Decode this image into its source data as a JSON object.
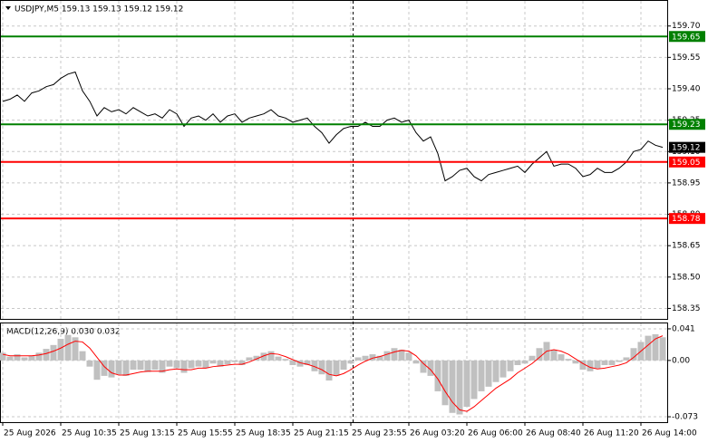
{
  "chart_data": [
    {
      "type": "line",
      "title": "USDJPY,M5  159.13 159.13 159.12 159.12",
      "ylim": [
        158.3,
        159.82
      ],
      "yticks": [
        {
          "value": 159.7,
          "label": "159.70"
        },
        159.55,
        {
          "value": 159.4,
          "label": "159.40"
        },
        159.25,
        {
          "value": 159.1,
          "label": "159.10"
        },
        158.95,
        {
          "value": 158.8,
          "label": "158.80"
        },
        158.65,
        {
          "value": 158.5,
          "label": "158.50"
        },
        158.35
      ],
      "grid": true,
      "series": [
        {
          "color": "#000000",
          "values": [
            159.34,
            159.35,
            159.37,
            159.34,
            159.38,
            159.39,
            159.41,
            159.42,
            159.45,
            159.47,
            159.48,
            159.39,
            159.34,
            159.27,
            159.31,
            159.29,
            159.3,
            159.28,
            159.31,
            159.29,
            159.27,
            159.28,
            159.26,
            159.3,
            159.28,
            159.22,
            159.26,
            159.27,
            159.25,
            159.28,
            159.24,
            159.27,
            159.28,
            159.24,
            159.26,
            159.27,
            159.28,
            159.3,
            159.27,
            159.26,
            159.24,
            159.25,
            159.26,
            159.22,
            159.19,
            159.14,
            159.18,
            159.21,
            159.22,
            159.22,
            159.24,
            159.22,
            159.22,
            159.25,
            159.26,
            159.24,
            159.25,
            159.19,
            159.15,
            159.17,
            159.09,
            158.96,
            158.98,
            159.01,
            159.02,
            158.98,
            158.96,
            158.99,
            159.0,
            159.01,
            159.02,
            159.03,
            159.0,
            159.04,
            159.07,
            159.1,
            159.03,
            159.04,
            159.04,
            159.02,
            158.98,
            158.99,
            159.02,
            159.0,
            159.0,
            159.02,
            159.05,
            159.1,
            159.11,
            159.15,
            159.13,
            159.12
          ]
        }
      ],
      "levels": [
        {
          "value": 159.65,
          "color": "#008000"
        },
        {
          "value": 159.23,
          "color": "#008000"
        },
        {
          "value": 159.05,
          "color": "#ff0000"
        },
        {
          "value": 158.78,
          "color": "#ff0000"
        }
      ],
      "current": 159.12
    },
    {
      "type": "macd",
      "title": "MACD(12,26,9) 0.030 0.032",
      "ylim": [
        -0.08,
        0.048
      ],
      "yticks": [
        0.041,
        {
          "value": 0,
          "label": "0.00"
        },
        -0.073
      ],
      "categories": [
        "25 Aug 2026",
        null,
        null,
        null,
        null,
        null,
        null,
        null,
        "25 Aug 10:35",
        null,
        null,
        null,
        null,
        null,
        null,
        null,
        "25 Aug 13:15",
        null,
        null,
        null,
        null,
        null,
        null,
        null,
        "25 Aug 15:55",
        null,
        null,
        null,
        null,
        null,
        null,
        null,
        "25 Aug 18:35",
        null,
        null,
        null,
        null,
        null,
        null,
        null,
        "25 Aug 21:15",
        null,
        null,
        null,
        null,
        null,
        null,
        null,
        "25 Aug 23:55",
        null,
        null,
        null,
        null,
        null,
        null,
        null,
        "26 Aug 03:20",
        null,
        null,
        null,
        null,
        null,
        null,
        null,
        "26 Aug 06:00",
        null,
        null,
        null,
        null,
        null,
        null,
        null,
        "26 Aug 08:40",
        null,
        null,
        null,
        null,
        null,
        null,
        null,
        "26 Aug 11:20",
        null,
        null,
        null,
        null,
        null,
        null,
        null,
        "26 Aug 14:00",
        null,
        null,
        null
      ],
      "series": [
        {
          "type": "bar",
          "color": "#c0c0c0",
          "values": [
            0.01,
            0.005,
            0.008,
            0.004,
            0.006,
            0.01,
            0.015,
            0.02,
            0.028,
            0.033,
            0.03,
            0.012,
            -0.008,
            -0.025,
            -0.02,
            -0.022,
            -0.018,
            -0.02,
            -0.012,
            -0.012,
            -0.015,
            -0.012,
            -0.016,
            -0.008,
            -0.01,
            -0.016,
            -0.01,
            -0.008,
            -0.01,
            -0.004,
            -0.008,
            -0.005,
            -0.002,
            -0.006,
            0.004,
            0.006,
            0.01,
            0.012,
            0.005,
            0.002,
            -0.006,
            -0.008,
            -0.006,
            -0.014,
            -0.018,
            -0.026,
            -0.02,
            -0.012,
            -0.004,
            0.004,
            0.006,
            0.008,
            0.006,
            0.012,
            0.016,
            0.014,
            0.01,
            -0.004,
            -0.016,
            -0.02,
            -0.04,
            -0.058,
            -0.068,
            -0.07,
            -0.06,
            -0.05,
            -0.04,
            -0.034,
            -0.028,
            -0.022,
            -0.014,
            -0.006,
            -0.004,
            0.006,
            0.016,
            0.024,
            0.014,
            0.008,
            0.002,
            -0.004,
            -0.012,
            -0.014,
            -0.01,
            -0.006,
            -0.006,
            -0.002,
            0.004,
            0.016,
            0.024,
            0.032,
            0.034,
            0.03
          ]
        },
        {
          "type": "line",
          "color": "#ff0000",
          "values": [
            0.008,
            0.006,
            0.006,
            0.006,
            0.006,
            0.007,
            0.009,
            0.012,
            0.016,
            0.021,
            0.025,
            0.024,
            0.016,
            0.004,
            -0.008,
            -0.016,
            -0.019,
            -0.019,
            -0.017,
            -0.015,
            -0.014,
            -0.014,
            -0.014,
            -0.012,
            -0.011,
            -0.012,
            -0.012,
            -0.01,
            -0.01,
            -0.008,
            -0.007,
            -0.006,
            -0.005,
            -0.005,
            -0.002,
            0.002,
            0.006,
            0.009,
            0.008,
            0.005,
            0.001,
            -0.003,
            -0.005,
            -0.008,
            -0.012,
            -0.018,
            -0.02,
            -0.017,
            -0.012,
            -0.006,
            -0.001,
            0.003,
            0.005,
            0.008,
            0.011,
            0.013,
            0.012,
            0.006,
            -0.004,
            -0.012,
            -0.024,
            -0.04,
            -0.054,
            -0.064,
            -0.066,
            -0.06,
            -0.052,
            -0.044,
            -0.036,
            -0.03,
            -0.024,
            -0.016,
            -0.01,
            -0.004,
            0.004,
            0.012,
            0.014,
            0.012,
            0.008,
            0.002,
            -0.004,
            -0.009,
            -0.011,
            -0.01,
            -0.008,
            -0.006,
            -0.003,
            0.004,
            0.012,
            0.02,
            0.028,
            0.032
          ]
        }
      ]
    }
  ]
}
